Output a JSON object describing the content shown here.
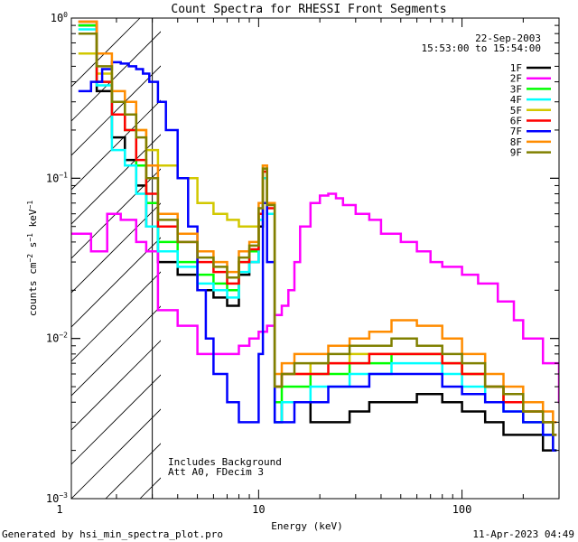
{
  "chart_data": {
    "type": "line",
    "title": "Count Spectra for RHESSI Front Segments",
    "xlabel": "Energy (keV)",
    "ylabel_main": "counts cm",
    "ylabel_exp1": "−2",
    "ylabel_mid": " s",
    "ylabel_exp2": "−1",
    "ylabel_end": " keV",
    "ylabel_exp3": "−1",
    "xscale": "log",
    "yscale": "log",
    "xlim": [
      1.2,
      300
    ],
    "ylim": [
      0.001,
      1.0
    ],
    "x_ticks": [
      {
        "value": 1,
        "label": "1"
      },
      {
        "value": 10,
        "label": "10"
      },
      {
        "value": 100,
        "label": "100"
      }
    ],
    "y_ticks": [
      {
        "value": 0.001,
        "base": "10",
        "exp": "−3"
      },
      {
        "value": 0.01,
        "base": "10",
        "exp": "−2"
      },
      {
        "value": 0.1,
        "base": "10",
        "exp": "−1"
      },
      {
        "value": 1.0,
        "base": "10",
        "exp": "0"
      }
    ],
    "date": "22-Sep-2003",
    "time_range": "15:53:00 to 15:54:00",
    "shaded_region_x_max_keV": 3,
    "annotation_line1": "Includes Background",
    "annotation_line2": "Att A0, FDecim 3",
    "legend_position": "top-right",
    "series": [
      {
        "name": "1F",
        "color": "#000000",
        "x": [
          1.3,
          1.6,
          1.9,
          2.2,
          2.5,
          2.8,
          3.2,
          4,
          5,
          6,
          7,
          8,
          9,
          10,
          10.5,
          11,
          12,
          13,
          15,
          18,
          22,
          28,
          35,
          45,
          60,
          80,
          100,
          130,
          160,
          200,
          250,
          280
        ],
        "values": [
          0.9,
          0.35,
          0.18,
          0.13,
          0.09,
          0.05,
          0.03,
          0.025,
          0.02,
          0.018,
          0.016,
          0.025,
          0.03,
          0.05,
          0.1,
          0.06,
          0.003,
          0.004,
          0.004,
          0.003,
          0.003,
          0.0035,
          0.004,
          0.004,
          0.0045,
          0.004,
          0.0035,
          0.003,
          0.0025,
          0.0025,
          0.002,
          0.002
        ]
      },
      {
        "name": "2F",
        "color": "#ff00ff",
        "x": [
          1.2,
          1.5,
          1.8,
          2.1,
          2.5,
          2.8,
          3.2,
          4,
          5,
          6,
          7,
          8,
          9,
          10,
          11,
          12,
          13,
          14,
          15,
          16,
          18,
          20,
          22,
          24,
          26,
          30,
          35,
          40,
          50,
          60,
          70,
          80,
          100,
          120,
          150,
          180,
          200,
          250,
          300
        ],
        "values": [
          0.045,
          0.035,
          0.06,
          0.055,
          0.04,
          0.035,
          0.015,
          0.012,
          0.008,
          0.008,
          0.008,
          0.009,
          0.01,
          0.011,
          0.012,
          0.014,
          0.016,
          0.02,
          0.03,
          0.05,
          0.07,
          0.078,
          0.08,
          0.075,
          0.068,
          0.06,
          0.055,
          0.045,
          0.04,
          0.035,
          0.03,
          0.028,
          0.025,
          0.022,
          0.017,
          0.013,
          0.01,
          0.007,
          0.004
        ]
      },
      {
        "name": "3F",
        "color": "#00ff00",
        "x": [
          1.3,
          1.6,
          1.9,
          2.2,
          2.5,
          2.8,
          3.2,
          4,
          5,
          6,
          7,
          8,
          9,
          10,
          10.5,
          11,
          12,
          13,
          15,
          18,
          22,
          28,
          35,
          45,
          60,
          80,
          100,
          130,
          160,
          200,
          250,
          280
        ],
        "values": [
          0.9,
          0.4,
          0.25,
          0.2,
          0.12,
          0.07,
          0.04,
          0.03,
          0.025,
          0.022,
          0.02,
          0.03,
          0.035,
          0.06,
          0.12,
          0.07,
          0.004,
          0.005,
          0.005,
          0.006,
          0.006,
          0.007,
          0.007,
          0.008,
          0.008,
          0.007,
          0.006,
          0.005,
          0.004,
          0.003,
          0.0025,
          0.002
        ]
      },
      {
        "name": "4F",
        "color": "#00ffff",
        "x": [
          1.3,
          1.6,
          1.9,
          2.2,
          2.5,
          2.8,
          3.2,
          4,
          5,
          6,
          7,
          8,
          9,
          10,
          10.5,
          11,
          12,
          13,
          15,
          18,
          22,
          28,
          35,
          45,
          60,
          80,
          100,
          130,
          160,
          200,
          250,
          280
        ],
        "values": [
          0.85,
          0.38,
          0.15,
          0.12,
          0.08,
          0.05,
          0.035,
          0.028,
          0.022,
          0.02,
          0.018,
          0.026,
          0.03,
          0.055,
          0.1,
          0.06,
          0.003,
          0.004,
          0.004,
          0.005,
          0.005,
          0.006,
          0.006,
          0.007,
          0.007,
          0.006,
          0.005,
          0.004,
          0.0035,
          0.003,
          0.0025,
          0.002
        ]
      },
      {
        "name": "5F",
        "color": "#d2c800",
        "x": [
          1.3,
          1.6,
          1.9,
          2.2,
          2.5,
          2.8,
          3.2,
          4,
          5,
          6,
          7,
          8,
          9,
          10,
          10.5,
          11,
          12,
          13,
          15,
          18,
          22,
          28,
          35,
          45,
          60,
          80,
          100,
          130,
          160,
          200,
          250,
          280
        ],
        "values": [
          0.6,
          0.45,
          0.3,
          0.25,
          0.2,
          0.15,
          0.12,
          0.1,
          0.07,
          0.06,
          0.055,
          0.05,
          0.05,
          0.06,
          0.12,
          0.07,
          0.005,
          0.006,
          0.006,
          0.007,
          0.007,
          0.008,
          0.008,
          0.008,
          0.008,
          0.007,
          0.006,
          0.005,
          0.004,
          0.0035,
          0.003,
          0.002
        ]
      },
      {
        "name": "6F",
        "color": "#ff0000",
        "x": [
          1.3,
          1.6,
          1.9,
          2.2,
          2.5,
          2.8,
          3.2,
          4,
          5,
          6,
          7,
          8,
          9,
          10,
          10.5,
          11,
          12,
          13,
          15,
          18,
          22,
          28,
          35,
          45,
          60,
          80,
          100,
          130,
          160,
          200,
          250,
          280
        ],
        "values": [
          0.95,
          0.4,
          0.25,
          0.2,
          0.13,
          0.08,
          0.05,
          0.04,
          0.03,
          0.026,
          0.022,
          0.03,
          0.036,
          0.06,
          0.11,
          0.065,
          0.005,
          0.006,
          0.006,
          0.006,
          0.007,
          0.007,
          0.008,
          0.008,
          0.008,
          0.007,
          0.006,
          0.005,
          0.004,
          0.0035,
          0.003,
          0.0025
        ]
      },
      {
        "name": "7F",
        "color": "#0000ff",
        "x": [
          1.3,
          1.5,
          1.7,
          1.9,
          2.1,
          2.3,
          2.5,
          2.7,
          2.9,
          3.2,
          3.5,
          4,
          4.5,
          5,
          5.5,
          6,
          7,
          8,
          9,
          10,
          10.5,
          11,
          12,
          13,
          15,
          18,
          22,
          28,
          35,
          45,
          60,
          80,
          100,
          130,
          160,
          200,
          250,
          280
        ],
        "values": [
          0.35,
          0.4,
          0.48,
          0.53,
          0.52,
          0.5,
          0.48,
          0.45,
          0.4,
          0.3,
          0.2,
          0.1,
          0.05,
          0.02,
          0.01,
          0.006,
          0.004,
          0.003,
          0.003,
          0.008,
          0.07,
          0.03,
          0.003,
          0.003,
          0.004,
          0.004,
          0.005,
          0.005,
          0.006,
          0.006,
          0.006,
          0.005,
          0.0045,
          0.004,
          0.0035,
          0.003,
          0.0025,
          0.002
        ]
      },
      {
        "name": "8F",
        "color": "#ff8c00",
        "x": [
          1.3,
          1.6,
          1.9,
          2.2,
          2.5,
          2.8,
          3.2,
          4,
          5,
          6,
          7,
          8,
          9,
          10,
          10.5,
          11,
          12,
          13,
          15,
          18,
          22,
          28,
          35,
          45,
          60,
          80,
          100,
          130,
          160,
          200,
          250,
          280
        ],
        "values": [
          0.95,
          0.6,
          0.35,
          0.3,
          0.2,
          0.12,
          0.06,
          0.045,
          0.035,
          0.03,
          0.026,
          0.035,
          0.04,
          0.07,
          0.12,
          0.07,
          0.006,
          0.007,
          0.008,
          0.008,
          0.009,
          0.01,
          0.011,
          0.013,
          0.012,
          0.01,
          0.008,
          0.006,
          0.005,
          0.004,
          0.0035,
          0.003
        ]
      },
      {
        "name": "9F",
        "color": "#808000",
        "x": [
          1.3,
          1.6,
          1.9,
          2.2,
          2.5,
          2.8,
          3.2,
          4,
          5,
          6,
          7,
          8,
          9,
          10,
          10.5,
          11,
          12,
          13,
          15,
          18,
          22,
          28,
          35,
          45,
          60,
          80,
          100,
          130,
          160,
          200,
          250,
          280
        ],
        "values": [
          0.8,
          0.5,
          0.3,
          0.25,
          0.18,
          0.1,
          0.055,
          0.04,
          0.032,
          0.028,
          0.024,
          0.032,
          0.038,
          0.065,
          0.115,
          0.068,
          0.005,
          0.006,
          0.007,
          0.007,
          0.008,
          0.009,
          0.009,
          0.01,
          0.009,
          0.008,
          0.007,
          0.005,
          0.0045,
          0.0035,
          0.003,
          0.0025
        ]
      }
    ]
  },
  "footer": {
    "generated_by": "Generated by hsi_min_spectra_plot.pro",
    "timestamp": "11-Apr-2023 04:49"
  }
}
